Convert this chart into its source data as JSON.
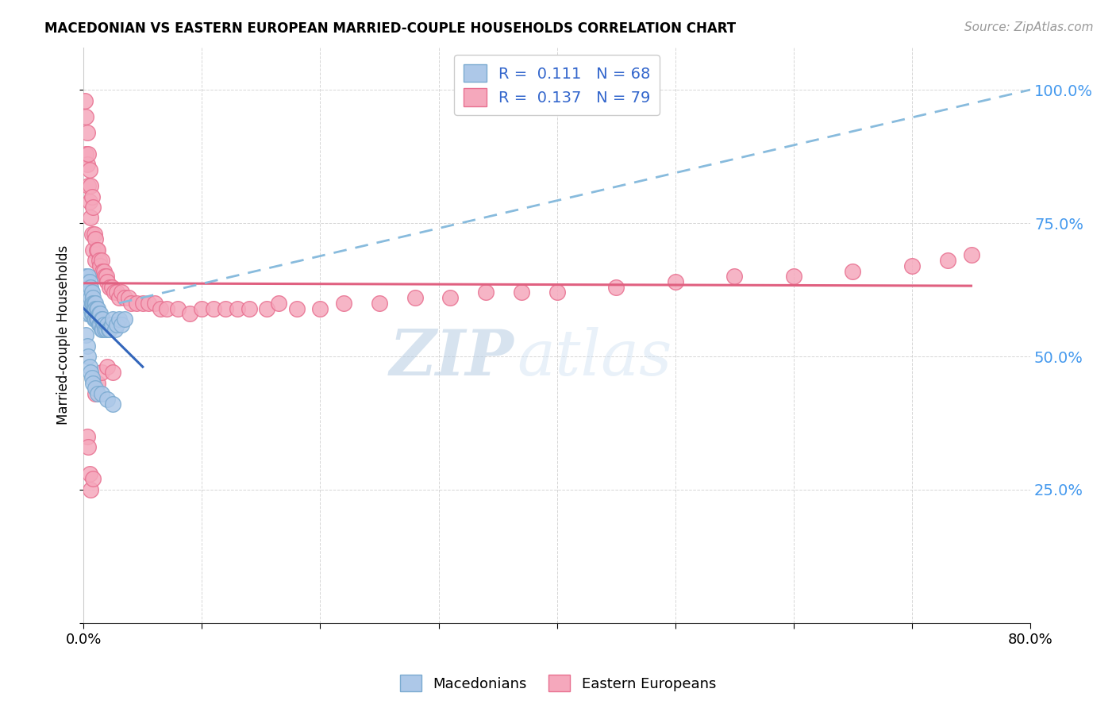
{
  "title": "MACEDONIAN VS EASTERN EUROPEAN MARRIED-COUPLE HOUSEHOLDS CORRELATION CHART",
  "source": "Source: ZipAtlas.com",
  "ylabel": "Married-couple Households",
  "xlim": [
    0.0,
    0.8
  ],
  "ylim": [
    0.0,
    1.08
  ],
  "yticks": [
    0.0,
    0.25,
    0.5,
    0.75,
    1.0
  ],
  "ytick_labels": [
    "",
    "25.0%",
    "50.0%",
    "75.0%",
    "100.0%"
  ],
  "xticks": [
    0.0,
    0.1,
    0.2,
    0.3,
    0.4,
    0.5,
    0.6,
    0.7,
    0.8
  ],
  "xtick_labels": [
    "0.0%",
    "",
    "",
    "",
    "",
    "",
    "",
    "",
    "80.0%"
  ],
  "macedonian_color": "#adc8e8",
  "eastern_color": "#f5a8bc",
  "macedonian_edge": "#7aaad0",
  "eastern_edge": "#e87090",
  "trend_mac_solid_color": "#3366bb",
  "trend_mac_dash_color": "#88bbdd",
  "trend_east_color": "#e06080",
  "legend_mac_R": "0.111",
  "legend_mac_N": "68",
  "legend_east_R": "0.137",
  "legend_east_N": "79",
  "watermark_zip": "ZIP",
  "watermark_atlas": "atlas",
  "background_color": "#ffffff",
  "grid_color": "#cccccc",
  "mac_marker_size": 200,
  "east_marker_size": 200,
  "mac_x": [
    0.001,
    0.002,
    0.002,
    0.002,
    0.003,
    0.003,
    0.003,
    0.003,
    0.004,
    0.004,
    0.004,
    0.004,
    0.005,
    0.005,
    0.005,
    0.005,
    0.006,
    0.006,
    0.006,
    0.007,
    0.007,
    0.007,
    0.008,
    0.008,
    0.008,
    0.009,
    0.009,
    0.009,
    0.01,
    0.01,
    0.01,
    0.011,
    0.011,
    0.012,
    0.012,
    0.013,
    0.013,
    0.014,
    0.014,
    0.015,
    0.015,
    0.016,
    0.016,
    0.017,
    0.018,
    0.019,
    0.02,
    0.021,
    0.022,
    0.024,
    0.025,
    0.027,
    0.028,
    0.03,
    0.032,
    0.035,
    0.002,
    0.003,
    0.004,
    0.005,
    0.006,
    0.007,
    0.008,
    0.01,
    0.012,
    0.015,
    0.02,
    0.025
  ],
  "mac_y": [
    0.62,
    0.65,
    0.63,
    0.6,
    0.64,
    0.62,
    0.6,
    0.58,
    0.65,
    0.63,
    0.61,
    0.59,
    0.64,
    0.62,
    0.6,
    0.58,
    0.63,
    0.61,
    0.59,
    0.62,
    0.6,
    0.58,
    0.61,
    0.6,
    0.58,
    0.6,
    0.59,
    0.57,
    0.6,
    0.59,
    0.57,
    0.59,
    0.57,
    0.59,
    0.57,
    0.58,
    0.56,
    0.58,
    0.56,
    0.57,
    0.55,
    0.57,
    0.55,
    0.56,
    0.55,
    0.55,
    0.56,
    0.55,
    0.55,
    0.56,
    0.57,
    0.55,
    0.56,
    0.57,
    0.56,
    0.57,
    0.54,
    0.52,
    0.5,
    0.48,
    0.47,
    0.46,
    0.45,
    0.44,
    0.43,
    0.43,
    0.42,
    0.41
  ],
  "east_x": [
    0.001,
    0.002,
    0.002,
    0.003,
    0.003,
    0.004,
    0.004,
    0.005,
    0.005,
    0.006,
    0.006,
    0.007,
    0.007,
    0.008,
    0.008,
    0.009,
    0.01,
    0.01,
    0.011,
    0.012,
    0.013,
    0.014,
    0.015,
    0.016,
    0.017,
    0.018,
    0.019,
    0.02,
    0.022,
    0.024,
    0.026,
    0.028,
    0.03,
    0.032,
    0.035,
    0.038,
    0.04,
    0.045,
    0.05,
    0.055,
    0.06,
    0.065,
    0.07,
    0.08,
    0.09,
    0.1,
    0.11,
    0.12,
    0.13,
    0.14,
    0.155,
    0.165,
    0.18,
    0.2,
    0.22,
    0.25,
    0.28,
    0.31,
    0.34,
    0.37,
    0.4,
    0.45,
    0.5,
    0.55,
    0.6,
    0.65,
    0.7,
    0.73,
    0.75,
    0.003,
    0.004,
    0.005,
    0.006,
    0.008,
    0.01,
    0.012,
    0.015,
    0.02,
    0.025
  ],
  "east_y": [
    0.98,
    0.95,
    0.88,
    0.92,
    0.86,
    0.88,
    0.82,
    0.85,
    0.79,
    0.82,
    0.76,
    0.8,
    0.73,
    0.78,
    0.7,
    0.73,
    0.72,
    0.68,
    0.7,
    0.7,
    0.68,
    0.67,
    0.68,
    0.66,
    0.66,
    0.65,
    0.65,
    0.64,
    0.63,
    0.63,
    0.62,
    0.62,
    0.61,
    0.62,
    0.61,
    0.61,
    0.6,
    0.6,
    0.6,
    0.6,
    0.6,
    0.59,
    0.59,
    0.59,
    0.58,
    0.59,
    0.59,
    0.59,
    0.59,
    0.59,
    0.59,
    0.6,
    0.59,
    0.59,
    0.6,
    0.6,
    0.61,
    0.61,
    0.62,
    0.62,
    0.62,
    0.63,
    0.64,
    0.65,
    0.65,
    0.66,
    0.67,
    0.68,
    0.69,
    0.35,
    0.33,
    0.28,
    0.25,
    0.27,
    0.43,
    0.45,
    0.47,
    0.48,
    0.47
  ]
}
